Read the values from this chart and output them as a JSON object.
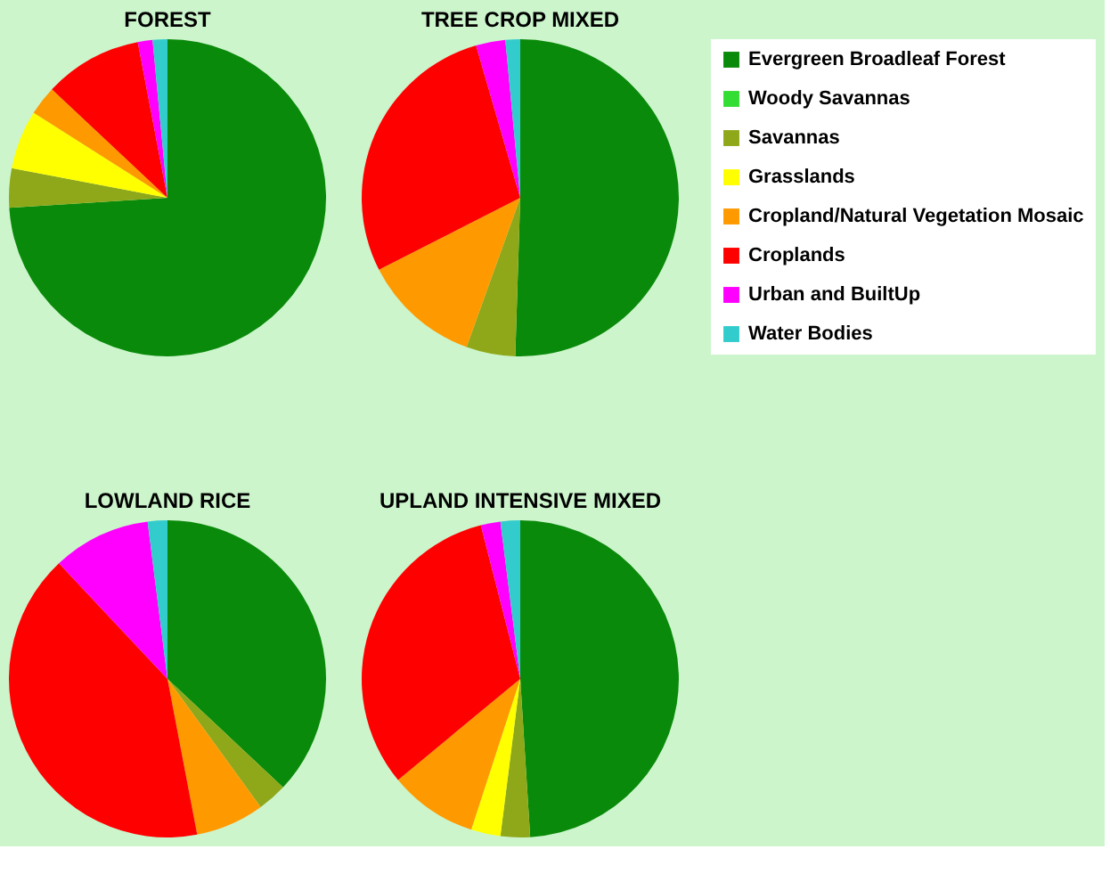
{
  "chart_data": [
    {
      "type": "pie",
      "title": "FOREST",
      "categories": [
        "Evergreen Broadleaf Forest",
        "Woody Savannas",
        "Savannas",
        "Grasslands",
        "Cropland/Natural Vegetation Mosaic",
        "Croplands",
        "Urban and BuiltUp",
        "Water Bodies"
      ],
      "values": [
        74,
        0,
        4,
        6,
        3,
        10,
        1.5,
        1.5
      ],
      "colors": [
        "#0a8a0a",
        "#33dd33",
        "#8fa81a",
        "#ffff00",
        "#ff9900",
        "#ff0000",
        "#ff00ff",
        "#33cccc"
      ],
      "legend": "right"
    },
    {
      "type": "pie",
      "title": "TREE CROP MIXED",
      "categories": [
        null,
        null,
        null,
        null,
        null,
        null,
        null,
        null
      ],
      "values": [
        50.5,
        0,
        5,
        0,
        12,
        28,
        3,
        1.5
      ],
      "colors": [
        "#0a8a0a",
        "#33dd33",
        "#8fa81a",
        "#ffff00",
        "#ff9900",
        "#ff0000",
        "#ff00ff",
        "#33cccc"
      ]
    },
    {
      "type": "pie",
      "title": "LOWLAND RICE",
      "categories": [
        null,
        null,
        null,
        null,
        null,
        null,
        null,
        null
      ],
      "values": [
        37,
        0,
        3,
        0,
        7,
        41,
        10,
        2
      ],
      "colors": [
        "#0a8a0a",
        "#33dd33",
        "#8fa81a",
        "#ffff00",
        "#ff9900",
        "#ff0000",
        "#ff00ff",
        "#33cccc"
      ]
    },
    {
      "type": "pie",
      "title": "UPLAND INTENSIVE MIXED",
      "categories": [
        null,
        null,
        null,
        null,
        null,
        null,
        null,
        null
      ],
      "values": [
        49,
        0,
        3,
        3,
        9,
        32,
        2,
        2
      ],
      "colors": [
        "#0a8a0a",
        "#33dd33",
        "#8fa81a",
        "#ffff00",
        "#ff9900",
        "#ff0000",
        "#ff00ff",
        "#33cccc"
      ]
    }
  ]
}
